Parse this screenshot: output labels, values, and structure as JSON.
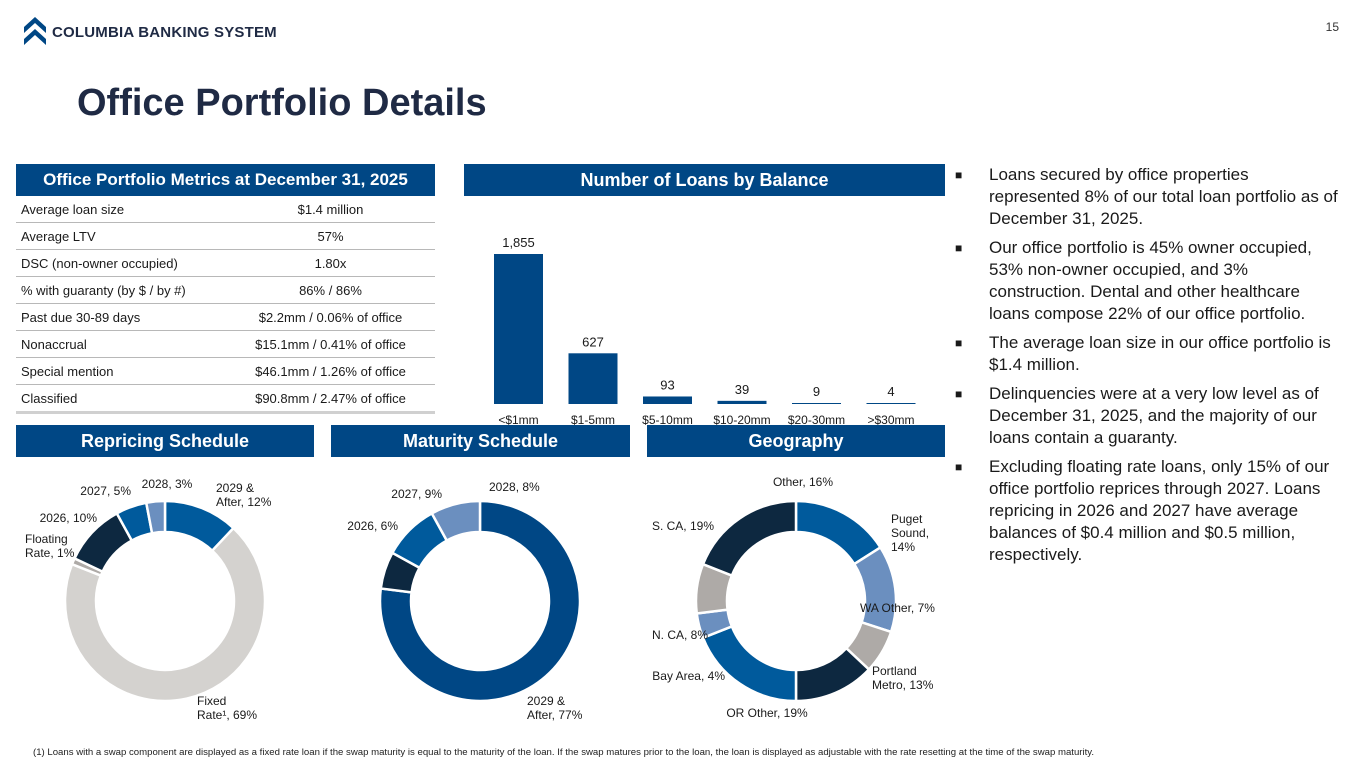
{
  "header": {
    "company_name": "COLUMBIA BANKING SYSTEM",
    "page_number": "15"
  },
  "page": {
    "title": "Office Portfolio Details"
  },
  "metrics": {
    "title": "Office Portfolio Metrics at December 31, 2025",
    "rows": [
      {
        "label": "Average loan size",
        "value": "$1.4 million"
      },
      {
        "label": "Average LTV",
        "value": "57%"
      },
      {
        "label": "DSC (non-owner occupied)",
        "value": "1.80x"
      },
      {
        "label": "% with guaranty (by $ / by #)",
        "value": "86% / 86%"
      },
      {
        "label": "Past due 30-89 days",
        "value": "$2.2mm / 0.06% of office"
      },
      {
        "label": "Nonaccrual",
        "value": "$15.1mm / 0.41% of office"
      },
      {
        "label": "Special mention",
        "value": "$46.1mm / 1.26% of office"
      },
      {
        "label": "Classified",
        "value": "$90.8mm / 2.47% of office"
      }
    ]
  },
  "colors": {
    "navy": "#004785",
    "mid_blue": "#005a9c",
    "light_blue": "#6b8fbf",
    "dark_navy": "#0d2840",
    "gray": "#aeaaa7",
    "light_gray": "#d4d2cf"
  },
  "chart_data": [
    {
      "id": "loans_by_balance",
      "type": "bar",
      "title": "Number of Loans by Balance",
      "categories": [
        "<$1mm",
        "$1-5mm",
        "$5-10mm",
        "$10-20mm",
        "$20-30mm",
        ">$30mm"
      ],
      "values": [
        1855,
        627,
        93,
        39,
        9,
        4
      ],
      "data_labels": [
        "1,855",
        "627",
        "93",
        "39",
        "9",
        "4"
      ],
      "ylim": [
        0,
        1855
      ]
    },
    {
      "id": "repricing",
      "type": "pie",
      "title": "Repricing Schedule",
      "slices": [
        {
          "label": "2029 & After, 12%",
          "lines": [
            "2029 &",
            "After, 12%"
          ],
          "value": 12,
          "color": "#005a9c"
        },
        {
          "label": "Fixed Rate¹, 69%",
          "lines": [
            "Fixed",
            "Rate¹, 69%"
          ],
          "value": 69,
          "color": "#d4d2cf"
        },
        {
          "label": "Floating Rate, 1%",
          "lines": [
            "Floating",
            "Rate, 1%"
          ],
          "value": 1,
          "color": "#aeaaa7"
        },
        {
          "label": "2026, 10%",
          "lines": [
            "2026, 10%"
          ],
          "value": 10,
          "color": "#0d2840"
        },
        {
          "label": "2027, 5%",
          "lines": [
            "2027, 5%"
          ],
          "value": 5,
          "color": "#005a9c"
        },
        {
          "label": "2028, 3%",
          "lines": [
            "2028, 3%"
          ],
          "value": 3,
          "color": "#6b8fbf"
        }
      ]
    },
    {
      "id": "maturity",
      "type": "pie",
      "title": "Maturity Schedule",
      "slices": [
        {
          "label": "2029 & After, 77%",
          "lines": [
            "2029 &",
            "After, 77%"
          ],
          "value": 77,
          "color": "#004785"
        },
        {
          "label": "2026, 6%",
          "lines": [
            "2026, 6%"
          ],
          "value": 6,
          "color": "#0d2840"
        },
        {
          "label": "2027, 9%",
          "lines": [
            "2027, 9%"
          ],
          "value": 9,
          "color": "#005a9c"
        },
        {
          "label": "2028, 8%",
          "lines": [
            "2028, 8%"
          ],
          "value": 8,
          "color": "#6b8fbf"
        }
      ]
    },
    {
      "id": "geography",
      "type": "pie",
      "title": "Geography",
      "slices": [
        {
          "label": "Other, 16%",
          "lines": [
            "Other, 16%"
          ],
          "value": 16,
          "color": "#005a9c"
        },
        {
          "label": "Puget Sound, 14%",
          "lines": [
            "Puget",
            "Sound,",
            "14%"
          ],
          "value": 14,
          "color": "#6b8fbf"
        },
        {
          "label": "WA Other, 7%",
          "lines": [
            "WA Other, 7%"
          ],
          "value": 7,
          "color": "#aeaaa7"
        },
        {
          "label": "Portland Metro, 13%",
          "lines": [
            "Portland",
            "Metro, 13%"
          ],
          "value": 13,
          "color": "#0d2840"
        },
        {
          "label": "OR Other, 19%",
          "lines": [
            "OR Other, 19%"
          ],
          "value": 19,
          "color": "#005a9c"
        },
        {
          "label": "Bay Area, 4%",
          "lines": [
            "Bay Area, 4%"
          ],
          "value": 4,
          "color": "#6b8fbf"
        },
        {
          "label": "N. CA, 8%",
          "lines": [
            "N. CA, 8%"
          ],
          "value": 8,
          "color": "#aeaaa7"
        },
        {
          "label": "S. CA, 19%",
          "lines": [
            "S. CA, 19%"
          ],
          "value": 19,
          "color": "#0d2840"
        }
      ]
    }
  ],
  "bullets": [
    "Loans secured by office properties represented 8% of our total loan portfolio as of December 31, 2025.",
    "Our office portfolio is 45% owner occupied, 53% non-owner occupied, and 3% construction. Dental and other healthcare loans compose 22% of our office portfolio.",
    "The average loan size in our office portfolio is $1.4 million.",
    "Delinquencies were at a very low level as of December 31, 2025, and the majority of our loans contain a guaranty.",
    "Excluding floating rate loans, only 15% of our office portfolio reprices through 2027. Loans repricing in 2026 and 2027 have average balances of $0.4 million and $0.5 million, respectively."
  ],
  "bullet_marker": "■",
  "footnote": "(1)  Loans with a swap component are displayed as a fixed rate loan if the swap maturity is equal to the maturity of the loan. If the swap matures prior to the loan, the loan is displayed as adjustable with the rate resetting at the time of the swap maturity."
}
